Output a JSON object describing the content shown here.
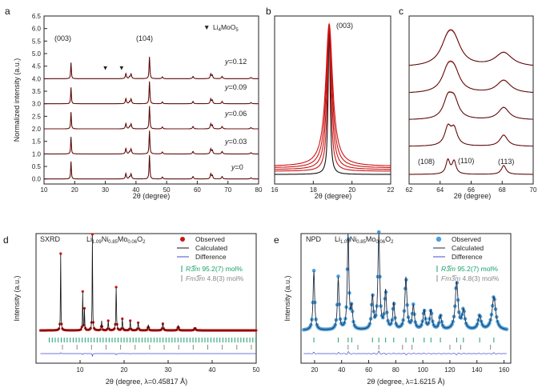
{
  "colors": {
    "red": "#cc1414",
    "black": "#111111",
    "blue": "#4a4ad6",
    "green": "#19a06b",
    "gray": "#888888",
    "npd_obs": "#4b9fdd",
    "npd_calc": "#1f2e44"
  },
  "chart_data": [
    {
      "panel": "a",
      "type": "line",
      "xlabel": "2θ (degree)",
      "ylabel": "Normalized intensity (a.u.)",
      "xlim": [
        10,
        80
      ],
      "ylim": [
        -0.2,
        6.5
      ],
      "xticks": [
        "10",
        "20",
        "30",
        "40",
        "50",
        "60",
        "70",
        "80"
      ],
      "yticks": [
        "0.0",
        "0.5",
        "1.0",
        "1.5",
        "2.0",
        "2.5",
        "3.0",
        "3.5",
        "4.0",
        "4.5",
        "5.0",
        "5.5",
        "6.0",
        "6.5"
      ],
      "legend": {
        "symbol": "▼",
        "label": "Li",
        "sub": "4",
        "label2": "MoO",
        "sub2": "5"
      },
      "series": [
        {
          "name": "y=0",
          "prefix": "y",
          "suffix": "=0",
          "offset": 0.0
        },
        {
          "name": "y=0.03",
          "prefix": "y",
          "suffix": "=0.03",
          "offset": 1.0
        },
        {
          "name": "y=0.06",
          "prefix": "y",
          "suffix": "=0.06",
          "offset": 2.0
        },
        {
          "name": "y=0.09",
          "prefix": "y",
          "suffix": "=0.09",
          "offset": 3.0
        },
        {
          "name": "y=0.12",
          "prefix": "y",
          "suffix": "=0.12",
          "offset": 4.0
        }
      ],
      "peaks": [
        {
          "label": "(003)",
          "x": 18.8
        },
        {
          "label": "(104)",
          "x": 44.4
        }
      ],
      "impurity_markers_x": [
        30.0,
        35.3
      ]
    },
    {
      "panel": "b",
      "type": "line",
      "xlabel": "2θ (degree)",
      "xlim": [
        16,
        22
      ],
      "xticks": [
        "16",
        "18",
        "20",
        "22"
      ],
      "peak_label": "(003)",
      "peak_x": 18.82
    },
    {
      "panel": "c",
      "type": "line",
      "xlabel": "2θ (degree)",
      "xlim": [
        62,
        70
      ],
      "xticks": [
        "62",
        "64",
        "66",
        "68",
        "70"
      ],
      "peak_labels": [
        {
          "label": "(108)",
          "x": 64.5
        },
        {
          "label": "(110)",
          "x": 64.9
        },
        {
          "label": "(113)",
          "x": 68.1
        }
      ]
    },
    {
      "panel": "d",
      "type": "scatter",
      "title_left": "SXRD",
      "formula": {
        "a": "Li",
        "a_sub": "1.09",
        "b": "Ni",
        "b_sub": "0.85",
        "c": "Mo",
        "c_sub": "0.06",
        "d": "O",
        "d_sub": "2"
      },
      "xlabel": "2θ (degree, λ=0.45817 Å)",
      "ylabel": "Intensity (a.u.)",
      "xlim": [
        0,
        50
      ],
      "xticks": [
        "10",
        "20",
        "30",
        "40",
        "50"
      ],
      "legend": [
        "Observed",
        "Calculated",
        "Difference"
      ],
      "phases": [
        {
          "name": "R3̅m",
          "value": "95.2(7) mol%"
        },
        {
          "name": "Fm3̅m",
          "value": "4.8(3) mol%"
        }
      ]
    },
    {
      "panel": "e",
      "type": "scatter",
      "title_left": "NPD",
      "formula": {
        "a": "Li",
        "a_sub": "1.09",
        "b": "Ni",
        "b_sub": "0.85",
        "c": "Mo",
        "c_sub": "0.06",
        "d": "O",
        "d_sub": "2"
      },
      "xlabel": "2θ (degree, λ=1.6215 Å)",
      "ylabel": "Intensity (a.u.)",
      "xlim": [
        10,
        165
      ],
      "xticks": [
        "20",
        "40",
        "60",
        "80",
        "100",
        "120",
        "140",
        "160"
      ],
      "legend": [
        "Observed",
        "Calculated",
        "Difference"
      ],
      "phases": [
        {
          "name": "R3̅m",
          "value": "95.2(7) mol%"
        },
        {
          "name": "Fm3̅m",
          "value": "4.8(3) mol%"
        }
      ]
    }
  ]
}
